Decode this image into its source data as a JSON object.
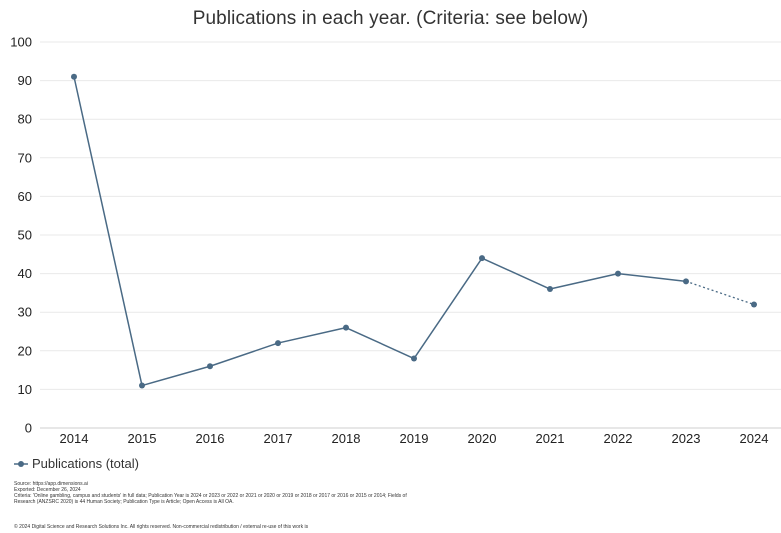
{
  "title": "Publications in each year. (Criteria: see below)",
  "colors": {
    "series": "#4a6a85",
    "grid": "#e9e9e9"
  },
  "chart_data": {
    "type": "line",
    "title": "Publications in each year. (Criteria: see below)",
    "xlabel": "",
    "ylabel": "",
    "categories": [
      "2014",
      "2015",
      "2016",
      "2017",
      "2018",
      "2019",
      "2020",
      "2021",
      "2022",
      "2023",
      "2024"
    ],
    "series": [
      {
        "name": "Publications (total)",
        "values": [
          91,
          11,
          16,
          22,
          26,
          18,
          44,
          36,
          40,
          38,
          32
        ]
      }
    ],
    "last_segment_style": "dotted",
    "ylim": [
      0,
      100
    ],
    "yticks": [
      0,
      10,
      20,
      30,
      40,
      50,
      60,
      70,
      80,
      90,
      100
    ],
    "grid": true,
    "legend_position": "bottom-left"
  },
  "legend": {
    "label": "Publications (total)"
  },
  "footer": {
    "source": "Source: https://app.dimensions.ai",
    "exported": "Exported: December 26, 2024",
    "criteria": "Criteria: 'Online gambling, campus and students' in full data; Publication Year is 2024 or 2023 or 2022 or 2021 or 2020 or 2019 or 2018 or 2017 or 2016 or 2015 or 2014; Fields of Research (ANZSRC 2020) is 44 Human Society; Publication Type is Article; Open Access is All OA.",
    "copyright": "© 2024 Digital Science and Research Solutions Inc. All rights reserved. Non-commercial redistribution / external re-use of this work is"
  }
}
